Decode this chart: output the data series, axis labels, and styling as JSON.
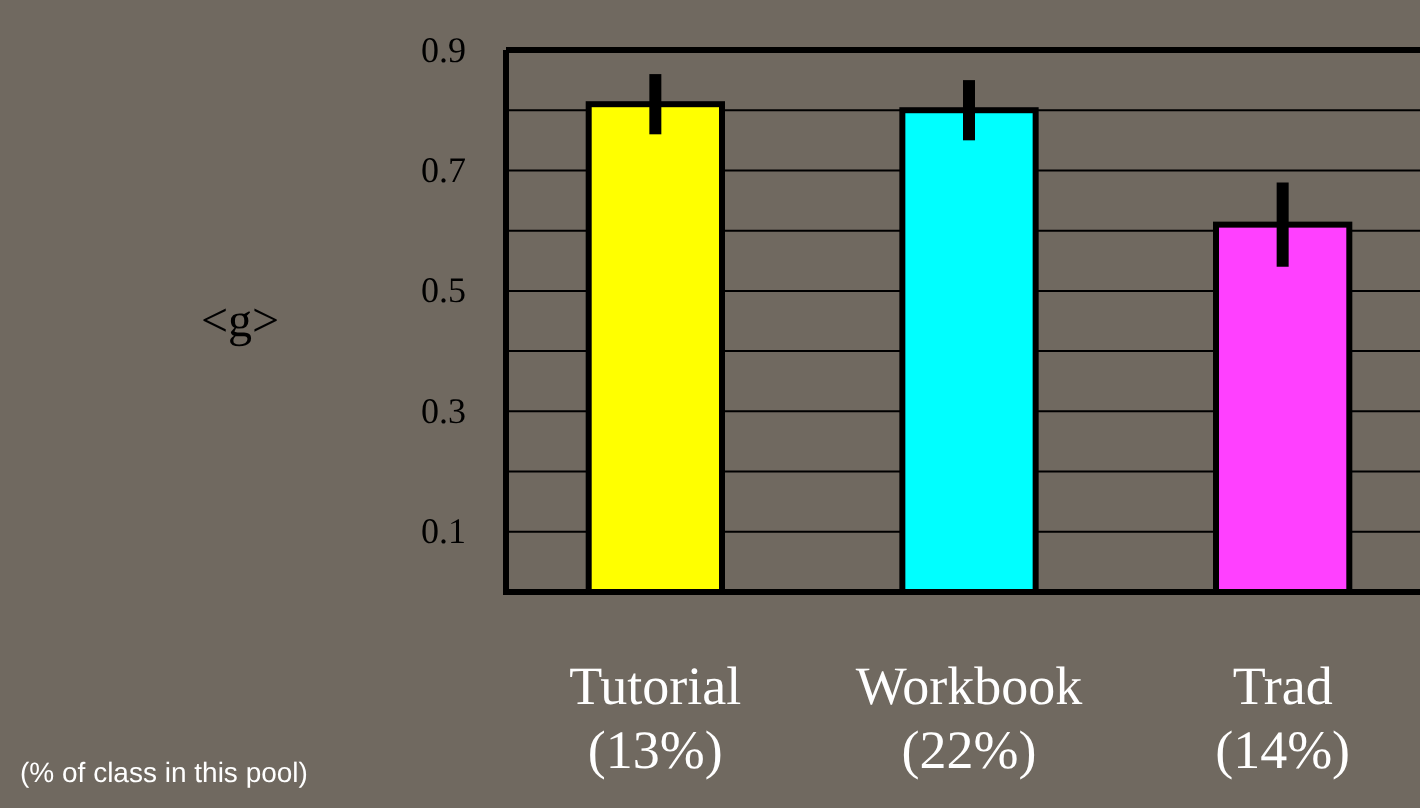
{
  "chart_data": {
    "type": "bar",
    "ylabel": "<g>",
    "categories": [
      "Tutorial\n(13%)",
      "Workbook\n(22%)",
      "Trad\n(14%)"
    ],
    "values": [
      0.81,
      0.8,
      0.61
    ],
    "colors": [
      "#ffff00",
      "#00ffff",
      "#ff40ff"
    ],
    "errors": [
      0.05,
      0.05,
      0.07
    ],
    "ylim": [
      0,
      0.9
    ],
    "yticks": [
      0.1,
      {
        "value": 0.2,
        "label": null
      },
      0.3,
      {
        "value": 0.4,
        "label": null
      },
      0.5,
      {
        "value": 0.6,
        "label": null
      },
      0.7,
      {
        "value": 0.8,
        "label": null
      },
      0.9
    ],
    "grid": "y",
    "annotations": [
      "(% of class in this pool)"
    ]
  }
}
